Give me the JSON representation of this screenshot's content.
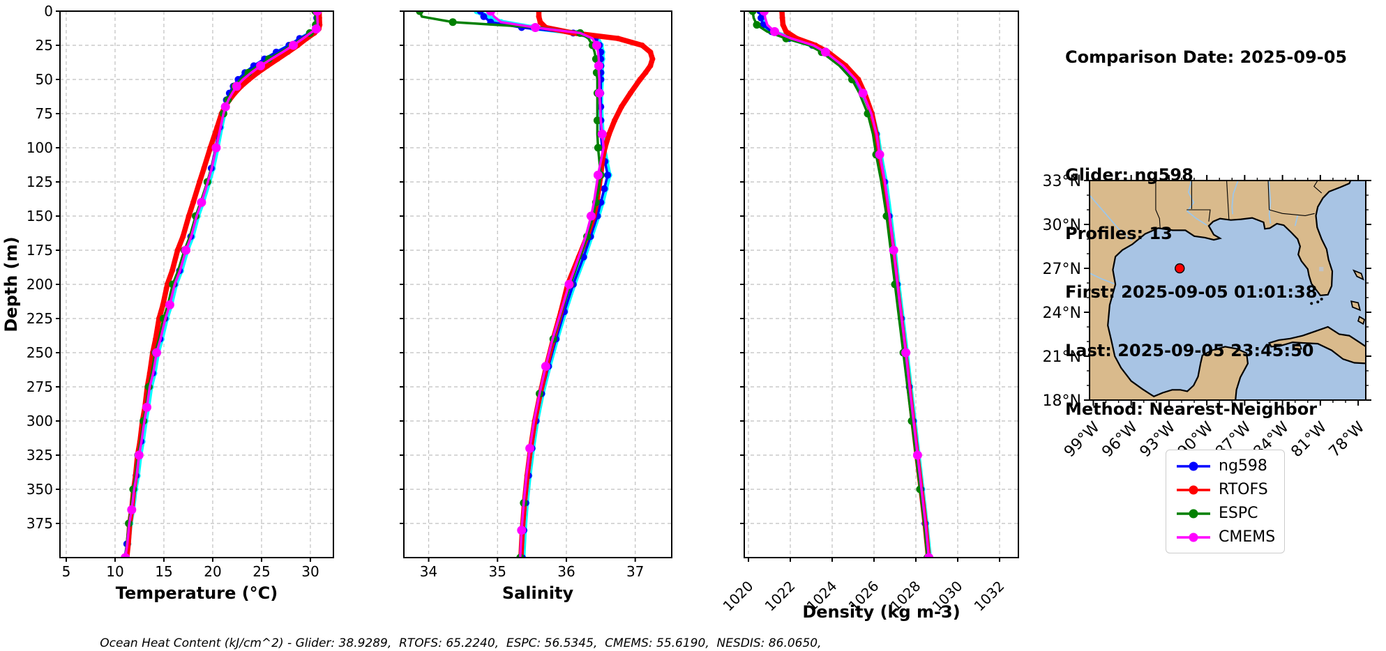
{
  "info": {
    "comparison_date": "Comparison Date: 2025-09-05",
    "glider": "Glider: ng598",
    "profiles": "Profiles: 13",
    "first": "First: 2025-09-05 01:01:38",
    "last": "Last: 2025-09-05 23:45:50",
    "method": "Method: Nearest-Neighbor"
  },
  "caption": {
    "text": "Ocean Heat Content (kJ/cm^2) - Glider: 38.9289,  RTOFS: 65.2240,  ESPC: 56.5345,  CMEMS: 55.6190,  NESDIS: 86.0650,"
  },
  "legend": {
    "items": [
      {
        "label": "ng598",
        "color": "#0000ff"
      },
      {
        "label": "RTOFS",
        "color": "#ff0000"
      },
      {
        "label": "ESPC",
        "color": "#008000"
      },
      {
        "label": "CMEMS",
        "color": "#ff00ff"
      }
    ]
  },
  "map": {
    "land_color": "#d9ba8c",
    "water_color": "#a8c4e4",
    "river_color": "#9ec6e8",
    "lat_ticks": [
      {
        "label": "33°N",
        "value": 33
      },
      {
        "label": "30°N",
        "value": 30
      },
      {
        "label": "27°N",
        "value": 27
      },
      {
        "label": "24°N",
        "value": 24
      },
      {
        "label": "21°N",
        "value": 21
      },
      {
        "label": "18°N",
        "value": 18
      }
    ],
    "lon_ticks": [
      {
        "label": "99°W",
        "value": -99
      },
      {
        "label": "96°W",
        "value": -96
      },
      {
        "label": "93°W",
        "value": -93
      },
      {
        "label": "90°W",
        "value": -90
      },
      {
        "label": "87°W",
        "value": -87
      },
      {
        "label": "84°W",
        "value": -84
      },
      {
        "label": "81°W",
        "value": -81
      },
      {
        "label": "78°W",
        "value": -78
      }
    ],
    "marker": {
      "lat": 27.0,
      "lon": -92.15,
      "color": "#ff0000"
    }
  },
  "chart_data": [
    {
      "id": "temperature",
      "type": "line",
      "xlabel": "Temperature (°C)",
      "ylabel": "Depth (m)",
      "xlim": [
        4.36,
        32.36
      ],
      "ylim": [
        400,
        0
      ],
      "xticks": [
        5,
        10,
        15,
        20,
        25,
        30
      ],
      "yticks": [
        0,
        25,
        50,
        75,
        100,
        125,
        150,
        175,
        200,
        225,
        250,
        275,
        300,
        325,
        350,
        375
      ],
      "grid": true,
      "rotate_xticklabels": false,
      "show_ytick_labels": true,
      "depths": [
        0,
        5,
        10,
        13,
        16,
        20,
        25,
        30,
        35,
        40,
        45,
        50,
        55,
        60,
        65,
        70,
        75,
        85,
        100,
        115,
        125,
        140,
        150,
        165,
        175,
        190,
        200,
        215,
        225,
        240,
        250,
        265,
        275,
        290,
        300,
        315,
        325,
        340,
        350,
        365,
        375,
        390,
        400
      ],
      "series": [
        {
          "name": "unlabeled-cyan",
          "color": "#00ffff",
          "line_width": 7,
          "marker_size": 4.5,
          "marker_every": 1,
          "values": [
            30.75,
            30.8,
            30.85,
            30.7,
            30.05,
            29.1,
            28.0,
            26.7,
            25.5,
            24.4,
            23.45,
            22.75,
            22.25,
            21.85,
            21.55,
            21.35,
            21.15,
            20.85,
            20.45,
            20.0,
            19.6,
            18.95,
            18.45,
            17.9,
            17.35,
            16.75,
            16.2,
            15.7,
            15.25,
            14.75,
            14.35,
            14.0,
            13.65,
            13.35,
            13.1,
            12.8,
            12.55,
            12.3,
            12.05,
            11.8,
            11.55,
            11.35,
            11.15
          ]
        },
        {
          "name": "ng598",
          "color": "#0000ff",
          "line_width": 3.5,
          "marker_size": 5,
          "marker_every": 1,
          "values": [
            30.6,
            30.65,
            30.7,
            30.55,
            29.9,
            28.9,
            27.8,
            26.5,
            25.3,
            24.2,
            23.3,
            22.6,
            22.1,
            21.7,
            21.4,
            21.2,
            21.0,
            20.7,
            20.3,
            19.85,
            19.45,
            18.8,
            18.3,
            17.75,
            17.2,
            16.6,
            16.05,
            15.55,
            15.1,
            14.6,
            14.2,
            13.85,
            13.5,
            13.2,
            12.95,
            12.65,
            12.4,
            12.15,
            11.9,
            11.65,
            11.4,
            11.2,
            11.0
          ]
        },
        {
          "name": "RTOFS",
          "color": "#ff0000",
          "line_width": 7.5,
          "marker_size": 4,
          "marker_every": 1,
          "values": [
            30.9,
            30.92,
            30.95,
            30.85,
            30.4,
            29.6,
            28.7,
            27.7,
            26.65,
            25.6,
            24.6,
            23.7,
            22.9,
            22.25,
            21.7,
            21.25,
            20.9,
            20.45,
            19.75,
            19.1,
            18.65,
            18.0,
            17.55,
            16.95,
            16.4,
            15.85,
            15.35,
            14.9,
            14.5,
            14.15,
            13.85,
            13.55,
            13.3,
            13.05,
            12.8,
            12.55,
            12.3,
            12.1,
            11.9,
            11.7,
            11.5,
            11.35,
            11.2
          ]
        },
        {
          "name": "ESPC",
          "color": "#008000",
          "line_width": 3.5,
          "marker_size": 5.5,
          "marker_every": 2,
          "values": [
            30.5,
            30.52,
            30.55,
            30.45,
            29.95,
            29.15,
            28.1,
            26.95,
            25.75,
            24.65,
            23.65,
            22.85,
            22.25,
            21.85,
            21.55,
            21.3,
            21.1,
            20.8,
            20.35,
            19.85,
            19.45,
            18.75,
            18.25,
            17.65,
            17.1,
            16.45,
            15.9,
            15.4,
            14.95,
            14.5,
            14.1,
            13.75,
            13.45,
            13.15,
            12.9,
            12.6,
            12.35,
            12.1,
            11.85,
            11.6,
            11.4,
            11.2,
            11.05
          ]
        },
        {
          "name": "CMEMS",
          "color": "#ff00ff",
          "line_width": 3.5,
          "marker_size": 6.5,
          "marker_every": 3,
          "values": [
            30.7,
            30.72,
            30.75,
            30.6,
            30.0,
            29.25,
            28.25,
            27.15,
            26.0,
            24.9,
            23.95,
            23.1,
            22.45,
            22.0,
            21.6,
            21.3,
            21.1,
            20.8,
            20.35,
            19.9,
            19.5,
            18.85,
            18.35,
            17.8,
            17.25,
            16.65,
            16.1,
            15.6,
            15.15,
            14.65,
            14.25,
            13.9,
            13.55,
            13.25,
            13.0,
            12.7,
            12.45,
            12.2,
            11.95,
            11.7,
            11.45,
            11.25,
            11.05
          ]
        }
      ]
    },
    {
      "id": "salinity",
      "type": "line",
      "xlabel": "Salinity",
      "ylabel": "",
      "xlim": [
        33.64,
        37.53
      ],
      "ylim": [
        400,
        0
      ],
      "xticks": [
        34,
        35,
        36,
        37
      ],
      "yticks": [
        0,
        25,
        50,
        75,
        100,
        125,
        150,
        175,
        200,
        225,
        250,
        275,
        300,
        325,
        350,
        375
      ],
      "grid": true,
      "rotate_xticklabels": false,
      "show_ytick_labels": false,
      "depths": [
        0,
        4,
        8,
        12,
        16,
        20,
        25,
        30,
        35,
        40,
        45,
        50,
        60,
        70,
        80,
        90,
        100,
        110,
        120,
        130,
        140,
        150,
        165,
        180,
        200,
        220,
        240,
        260,
        280,
        300,
        320,
        340,
        360,
        380,
        400
      ],
      "series": [
        {
          "name": "unlabeled-cyan",
          "color": "#00ffff",
          "line_width": 7,
          "marker_size": 4.5,
          "marker_every": 1,
          "values": [
            34.7,
            34.85,
            35.05,
            35.5,
            36.15,
            36.45,
            36.5,
            36.52,
            36.52,
            36.51,
            36.51,
            36.51,
            36.5,
            36.5,
            36.51,
            36.52,
            36.54,
            36.58,
            36.62,
            36.57,
            36.52,
            36.46,
            36.36,
            36.26,
            36.11,
            35.98,
            35.86,
            35.75,
            35.65,
            35.57,
            35.51,
            35.46,
            35.42,
            35.39,
            35.37
          ]
        },
        {
          "name": "ng598",
          "color": "#0000ff",
          "line_width": 3.5,
          "marker_size": 5,
          "marker_every": 1,
          "values": [
            34.75,
            34.8,
            34.9,
            35.35,
            36.1,
            36.42,
            36.48,
            36.5,
            36.5,
            36.5,
            36.5,
            36.5,
            36.5,
            36.5,
            36.5,
            36.5,
            36.52,
            36.56,
            36.6,
            36.55,
            36.5,
            36.45,
            36.35,
            36.25,
            36.1,
            35.97,
            35.85,
            35.74,
            35.64,
            35.56,
            35.5,
            35.45,
            35.41,
            35.38,
            35.36
          ]
        },
        {
          "name": "RTOFS",
          "color": "#ff0000",
          "line_width": 7.5,
          "marker_size": 4,
          "marker_every": 1,
          "values": [
            35.6,
            35.6,
            35.62,
            35.7,
            36.1,
            36.75,
            37.1,
            37.22,
            37.25,
            37.22,
            37.15,
            37.07,
            36.93,
            36.8,
            36.7,
            36.62,
            36.56,
            36.52,
            36.5,
            36.47,
            36.44,
            36.4,
            36.3,
            36.18,
            36.02,
            35.92,
            35.81,
            35.71,
            35.62,
            35.54,
            35.48,
            35.43,
            35.39,
            35.36,
            35.34
          ]
        },
        {
          "name": "ESPC",
          "color": "#008000",
          "line_width": 3.5,
          "marker_size": 5.5,
          "marker_every": 2,
          "values": [
            33.87,
            33.9,
            34.35,
            35.6,
            36.2,
            36.32,
            36.38,
            36.41,
            36.43,
            36.44,
            36.44,
            36.45,
            36.45,
            36.45,
            36.45,
            36.45,
            36.46,
            36.48,
            36.5,
            36.47,
            36.43,
            36.39,
            36.3,
            36.2,
            36.06,
            35.93,
            35.81,
            35.7,
            35.61,
            35.53,
            35.47,
            35.42,
            35.38,
            35.35,
            35.33
          ]
        },
        {
          "name": "CMEMS",
          "color": "#ff00ff",
          "line_width": 3.5,
          "marker_size": 6.5,
          "marker_every": 3,
          "values": [
            34.9,
            34.95,
            35.05,
            35.55,
            36.2,
            36.38,
            36.44,
            36.46,
            36.47,
            36.47,
            36.47,
            36.48,
            36.48,
            36.49,
            36.5,
            36.52,
            36.54,
            36.5,
            36.46,
            36.43,
            36.4,
            36.36,
            36.28,
            36.18,
            36.04,
            35.92,
            35.8,
            35.7,
            35.61,
            35.53,
            35.47,
            35.42,
            35.38,
            35.35,
            35.33
          ]
        }
      ]
    },
    {
      "id": "density",
      "type": "line",
      "xlabel": "Density (kg m-3)",
      "ylabel": "",
      "xlim": [
        1019.8,
        1032.9
      ],
      "ylim": [
        400,
        0
      ],
      "xticks": [
        1020,
        1022,
        1024,
        1026,
        1028,
        1030,
        1032
      ],
      "yticks": [
        0,
        25,
        50,
        75,
        100,
        125,
        150,
        175,
        200,
        225,
        250,
        275,
        300,
        325,
        350,
        375
      ],
      "grid": true,
      "rotate_xticklabels": true,
      "show_ytick_labels": false,
      "depths": [
        0,
        5,
        10,
        15,
        20,
        25,
        30,
        40,
        50,
        60,
        75,
        90,
        105,
        125,
        150,
        175,
        200,
        225,
        250,
        275,
        300,
        325,
        350,
        375,
        400
      ],
      "series": [
        {
          "name": "unlabeled-cyan",
          "color": "#00ffff",
          "line_width": 7,
          "marker_size": 4.5,
          "marker_every": 1,
          "values": [
            1020.6,
            1020.65,
            1020.75,
            1021.15,
            1022.0,
            1023.1,
            1023.7,
            1024.55,
            1025.15,
            1025.5,
            1025.9,
            1026.15,
            1026.3,
            1026.55,
            1026.77,
            1026.97,
            1027.15,
            1027.35,
            1027.55,
            1027.73,
            1027.92,
            1028.11,
            1028.3,
            1028.49,
            1028.65
          ]
        },
        {
          "name": "ng598",
          "color": "#0000ff",
          "line_width": 3.5,
          "marker_size": 5,
          "marker_every": 1,
          "values": [
            1020.55,
            1020.6,
            1020.7,
            1021.1,
            1021.95,
            1023.05,
            1023.65,
            1024.5,
            1025.1,
            1025.45,
            1025.85,
            1026.1,
            1026.25,
            1026.5,
            1026.72,
            1026.92,
            1027.1,
            1027.3,
            1027.5,
            1027.68,
            1027.87,
            1028.06,
            1028.25,
            1028.44,
            1028.6
          ]
        },
        {
          "name": "RTOFS",
          "color": "#ff0000",
          "line_width": 7.5,
          "marker_size": 4,
          "marker_every": 1,
          "values": [
            1021.6,
            1021.62,
            1021.65,
            1021.8,
            1022.3,
            1023.2,
            1023.8,
            1024.65,
            1025.25,
            1025.55,
            1025.9,
            1026.1,
            1026.22,
            1026.45,
            1026.68,
            1026.9,
            1027.08,
            1027.28,
            1027.48,
            1027.67,
            1027.86,
            1028.05,
            1028.25,
            1028.44,
            1028.6
          ]
        },
        {
          "name": "ESPC",
          "color": "#008000",
          "line_width": 3.5,
          "marker_size": 5.5,
          "marker_every": 2,
          "values": [
            1020.2,
            1020.25,
            1020.4,
            1020.9,
            1021.8,
            1022.9,
            1023.5,
            1024.35,
            1024.95,
            1025.3,
            1025.7,
            1025.95,
            1026.1,
            1026.35,
            1026.6,
            1026.8,
            1027.0,
            1027.2,
            1027.4,
            1027.6,
            1027.8,
            1028.0,
            1028.2,
            1028.4,
            1028.55
          ]
        },
        {
          "name": "CMEMS",
          "color": "#ff00ff",
          "line_width": 3.5,
          "marker_size": 6.5,
          "marker_every": 3,
          "values": [
            1020.75,
            1020.8,
            1020.9,
            1021.25,
            1022.05,
            1023.1,
            1023.68,
            1024.52,
            1025.12,
            1025.47,
            1025.87,
            1026.12,
            1026.27,
            1026.52,
            1026.74,
            1026.94,
            1027.12,
            1027.32,
            1027.52,
            1027.7,
            1027.89,
            1028.08,
            1028.27,
            1028.46,
            1028.62
          ]
        }
      ]
    }
  ]
}
